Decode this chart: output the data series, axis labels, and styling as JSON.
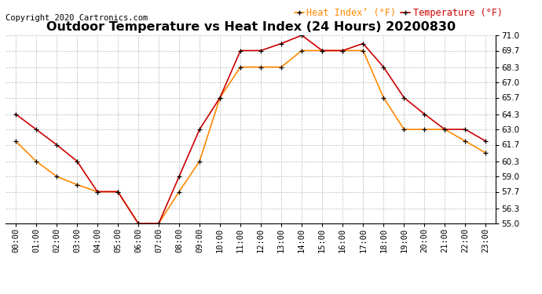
{
  "title": "Outdoor Temperature vs Heat Index (24 Hours) 20200830",
  "copyright": "Copyright 2020 Cartronics.com",
  "hours": [
    "00:00",
    "01:00",
    "02:00",
    "03:00",
    "04:00",
    "05:00",
    "06:00",
    "07:00",
    "08:00",
    "09:00",
    "10:00",
    "11:00",
    "12:00",
    "13:00",
    "14:00",
    "15:00",
    "16:00",
    "17:00",
    "18:00",
    "19:00",
    "20:00",
    "21:00",
    "22:00",
    "23:00"
  ],
  "temperature": [
    64.3,
    63.0,
    61.7,
    60.3,
    57.7,
    57.7,
    55.0,
    55.0,
    59.0,
    63.0,
    65.7,
    69.7,
    69.7,
    70.3,
    71.0,
    69.7,
    69.7,
    70.3,
    68.3,
    65.7,
    64.3,
    63.0,
    63.0,
    62.0
  ],
  "heat_index": [
    62.0,
    60.3,
    59.0,
    58.3,
    57.7,
    57.7,
    55.0,
    55.0,
    57.7,
    60.3,
    65.7,
    68.3,
    68.3,
    68.3,
    69.7,
    69.7,
    69.7,
    69.7,
    65.7,
    63.0,
    63.0,
    63.0,
    62.0,
    61.0
  ],
  "ylim": [
    55.0,
    71.0
  ],
  "yticks": [
    55.0,
    56.3,
    57.7,
    59.0,
    60.3,
    61.7,
    63.0,
    64.3,
    65.7,
    67.0,
    68.3,
    69.7,
    71.0
  ],
  "temp_color": "#cc0000",
  "heat_color": "#ff8800",
  "marker_color": "black",
  "bg_color": "#ffffff",
  "grid_color": "#bbbbbb",
  "title_fontsize": 11.5,
  "copyright_fontsize": 7.5,
  "legend_fontsize": 8.5,
  "tick_fontsize": 7.5
}
